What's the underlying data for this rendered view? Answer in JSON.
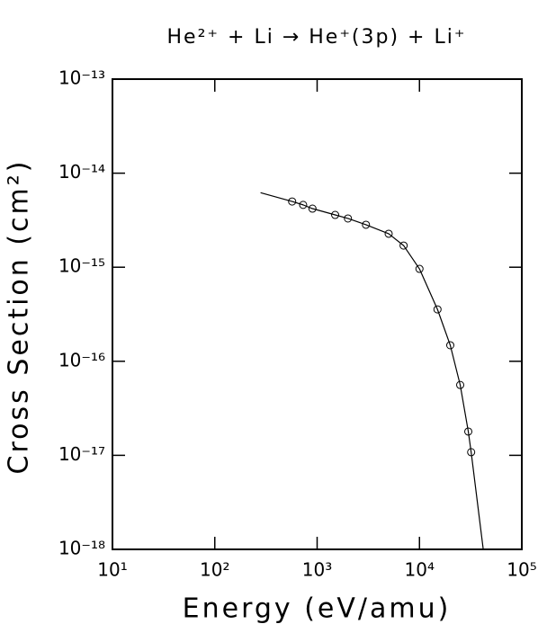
{
  "chart_data": {
    "type": "scatter",
    "title": "He²⁺ + Li → He⁺(3p) + Li⁺",
    "x_label": "Energy (eV/amu)",
    "y_label": "Cross Section (cm²)",
    "log_x": true,
    "log_y": true,
    "xlim": [
      10,
      100000
    ],
    "ylim": [
      1e-18,
      1e-13
    ],
    "xticks": [
      {
        "value": 10,
        "label": "10¹"
      },
      {
        "value": 100,
        "label": "10²"
      },
      {
        "value": 1000,
        "label": "10³"
      },
      {
        "value": 10000,
        "label": "10⁴"
      },
      {
        "value": 100000,
        "label": "10⁵"
      }
    ],
    "yticks": [
      {
        "value": 1e-18,
        "label": "10⁻¹⁸"
      },
      {
        "value": 1e-17,
        "label": "10⁻¹⁷"
      },
      {
        "value": 1e-16,
        "label": "10⁻¹⁶"
      },
      {
        "value": 1e-15,
        "label": "10⁻¹⁵"
      },
      {
        "value": 1e-14,
        "label": "10⁻¹⁴"
      },
      {
        "value": 1e-13,
        "label": "10⁻¹³"
      }
    ],
    "series": [
      {
        "color": "#000000",
        "marker": "circle",
        "x": [
          570,
          730,
          900,
          1500,
          2000,
          3000,
          5000,
          7000,
          10000,
          15000,
          20000,
          25000,
          30000,
          32000
        ],
        "values": [
          5e-15,
          4.6e-15,
          4.2e-15,
          3.6e-15,
          3.3e-15,
          2.83e-15,
          2.27e-15,
          1.7e-15,
          9.6e-16,
          3.56e-16,
          1.48e-16,
          5.6e-17,
          1.79e-17,
          1.08e-17
        ]
      },
      {
        "color": "#000000",
        "marker": "line",
        "x": [
          280,
          570,
          730,
          900,
          1500,
          2000,
          3000,
          5000,
          7000,
          10000,
          15000,
          20000,
          25000,
          30000,
          32000,
          42000
        ],
        "values": [
          6.2e-15,
          5e-15,
          4.6e-15,
          4.2e-15,
          3.6e-15,
          3.3e-15,
          2.83e-15,
          2.27e-15,
          1.7e-15,
          9.6e-16,
          3.56e-16,
          1.48e-16,
          5.6e-17,
          1.79e-17,
          1.08e-17,
          1e-18
        ]
      }
    ]
  }
}
